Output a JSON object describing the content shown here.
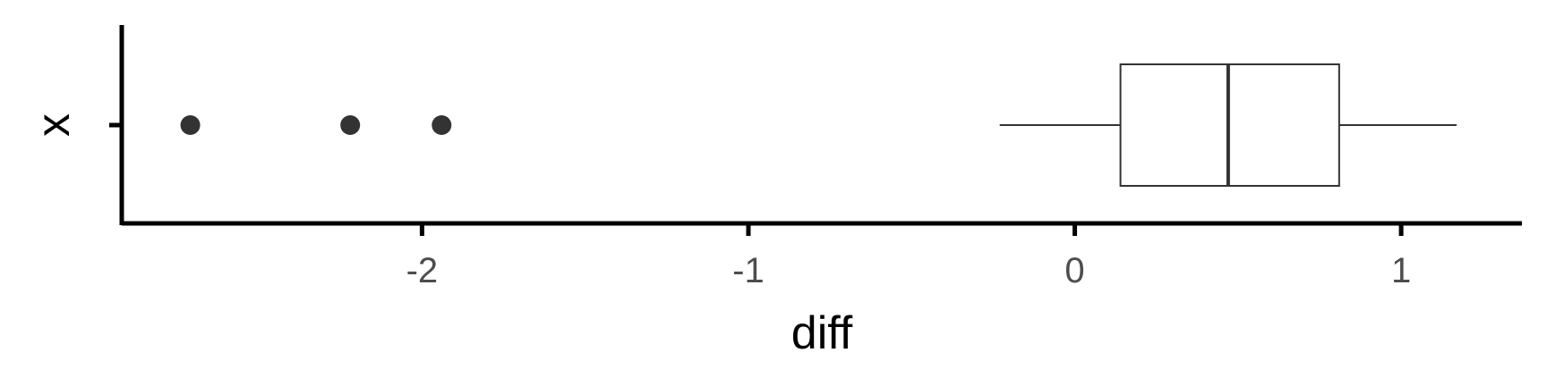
{
  "chart_data": {
    "type": "boxplot",
    "title": "",
    "xlabel": "diff",
    "ylabel": "x",
    "xlim": [
      -2.92,
      1.37
    ],
    "grid": false,
    "x_ticks": [
      {
        "value": -2,
        "label": "-2"
      },
      {
        "value": -1,
        "label": "-1"
      },
      {
        "value": 0,
        "label": "0"
      },
      {
        "value": 1,
        "label": "1"
      }
    ],
    "categories": [
      ""
    ],
    "boxes": [
      {
        "category": "",
        "whisker_low": -0.23,
        "q1": 0.14,
        "median": 0.47,
        "q3": 0.81,
        "whisker_high": 1.17,
        "outliers": [
          -2.71,
          -2.22,
          -1.94
        ]
      }
    ],
    "colors": {
      "axis": "#000000",
      "box_stroke": "#333333",
      "outlier": "#333333",
      "tick_text": "#4d4d4d"
    }
  }
}
